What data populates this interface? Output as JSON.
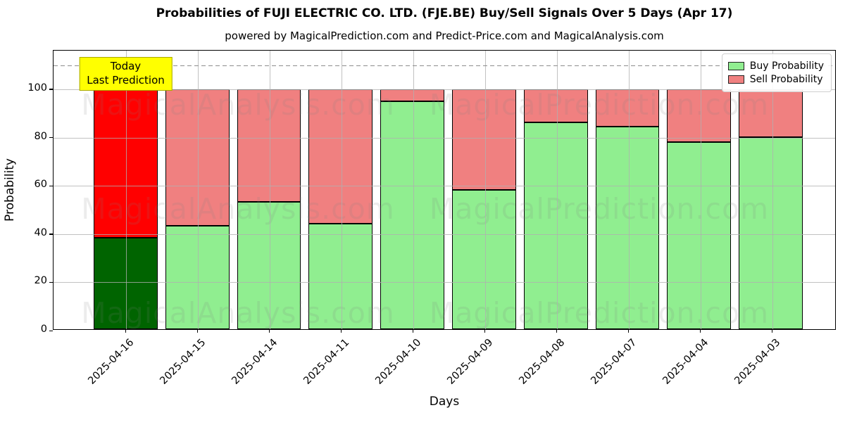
{
  "header": {
    "title": "Probabilities of FUJI ELECTRIC CO. LTD. (FJE.BE) Buy/Sell Signals Over 5 Days (Apr 17)",
    "subtitle": "powered by MagicalPrediction.com and Predict-Price.com and MagicalAnalysis.com"
  },
  "annotation": {
    "line1": "Today",
    "line2": "Last Prediction"
  },
  "legend": {
    "items": [
      {
        "label": "Buy Probability",
        "color": "#90EE90"
      },
      {
        "label": "Sell Probability",
        "color": "#F08080"
      }
    ]
  },
  "watermarks": {
    "left": "MagicalAnalysis.com",
    "right": "MagicalPrediction.com"
  },
  "colors": {
    "buy": "#90EE90",
    "sell": "#F08080",
    "buy_today": "#006400",
    "sell_today": "#FF0000",
    "annotation_bg": "#FFFF00",
    "grid": "#B0B0B0",
    "dashed_line": "#8C8C8C"
  },
  "chart_data": {
    "type": "bar",
    "stacked": true,
    "title": "Probabilities of FUJI ELECTRIC CO. LTD. (FJE.BE) Buy/Sell Signals Over 5 Days (Apr 17)",
    "xlabel": "Days",
    "ylabel": "Probability",
    "ylim": [
      0,
      116
    ],
    "yticks": [
      0,
      20,
      40,
      60,
      80,
      100
    ],
    "dashed_threshold": 110,
    "grid": true,
    "legend_position": "upper right",
    "categories": [
      "2025-04-16",
      "2025-04-15",
      "2025-04-14",
      "2025-04-11",
      "2025-04-10",
      "2025-04-09",
      "2025-04-08",
      "2025-04-07",
      "2025-04-04",
      "2025-04-03"
    ],
    "series": [
      {
        "name": "Buy Probability",
        "values": [
          38,
          43,
          53,
          44,
          95,
          58,
          86,
          84.5,
          78,
          80
        ]
      },
      {
        "name": "Sell Probability",
        "values": [
          62,
          57,
          47,
          56,
          5,
          42,
          14,
          15.5,
          22,
          20
        ]
      }
    ],
    "note": "First bar (today) drawn in darkgreen/red; remaining bars lightgreen/lightcoral; all stacks sum to 100"
  }
}
